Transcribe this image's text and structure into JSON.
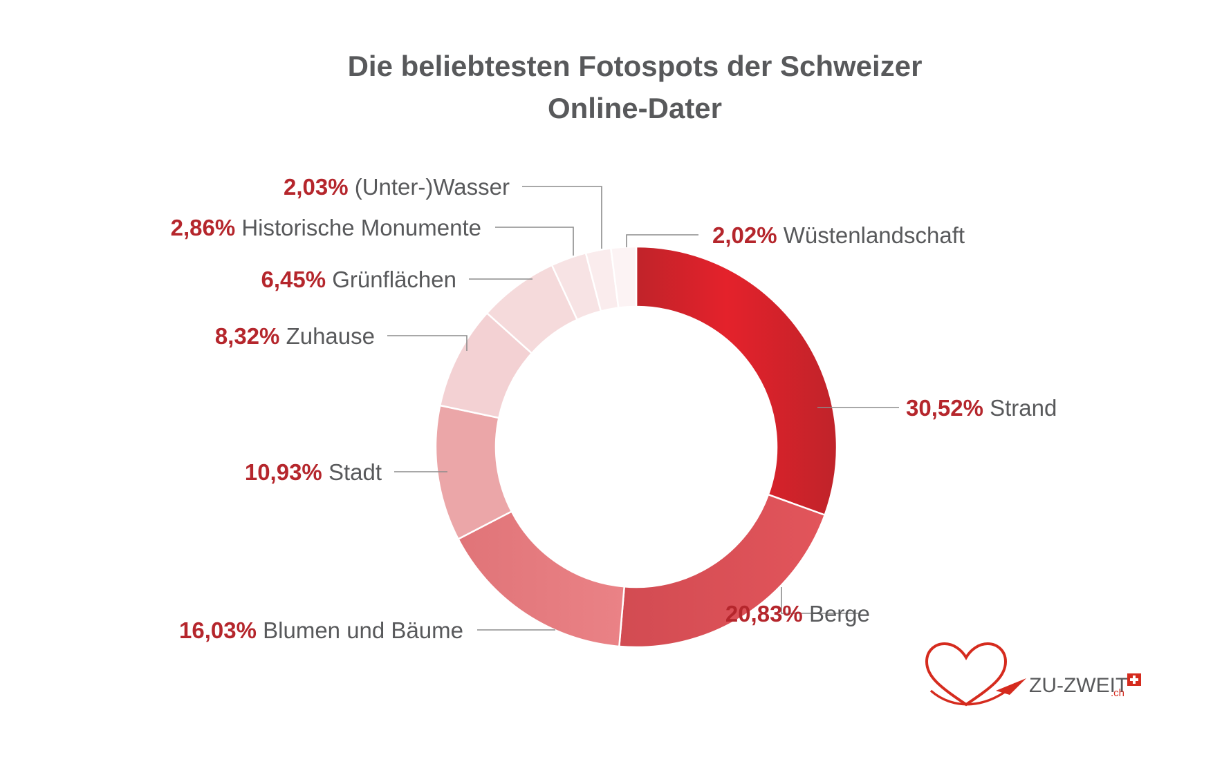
{
  "chart_data": {
    "type": "donut",
    "title": "Die beliebtesten Fotospots der Schweizer Online-Dater",
    "title_lines": [
      "Die beliebtesten Fotospots der Schweizer",
      "Online-Dater"
    ],
    "legend_placement": "outside-labels",
    "unit": "%",
    "slices": [
      {
        "label": "Strand",
        "value": 30.52,
        "value_label": "30,52%",
        "color": "#d42a30"
      },
      {
        "label": "Berge",
        "value": 20.83,
        "value_label": "20,83%",
        "color": "#dc4f55"
      },
      {
        "label": "Blumen und Bäume",
        "value": 16.03,
        "value_label": "16,03%",
        "color": "#e47b7f"
      },
      {
        "label": "Stadt",
        "value": 10.93,
        "value_label": "10,93%",
        "color": "#eba6a8"
      },
      {
        "label": "Zuhause",
        "value": 8.32,
        "value_label": "8,32%",
        "color": "#f3d1d3"
      },
      {
        "label": "Grünflächen",
        "value": 6.45,
        "value_label": "6,45%",
        "color": "#f5dadb"
      },
      {
        "label": "Historische Monumente",
        "value": 2.86,
        "value_label": "2,86%",
        "color": "#f7e3e4"
      },
      {
        "label": "(Unter-)Wasser",
        "value": 2.03,
        "value_label": "2,03%",
        "color": "#faeced"
      },
      {
        "label": "Wüstenlandschaft",
        "value": 2.02,
        "value_label": "2,02%",
        "color": "#fcf3f4"
      }
    ]
  },
  "logo": {
    "text": "ZU-ZWEIT",
    "suffix": ".ch",
    "brand_color": "#d52b1e"
  },
  "colors": {
    "title": "#58595b",
    "percent": "#b5262c",
    "label": "#58595b",
    "leader": "#8c8c8c"
  }
}
